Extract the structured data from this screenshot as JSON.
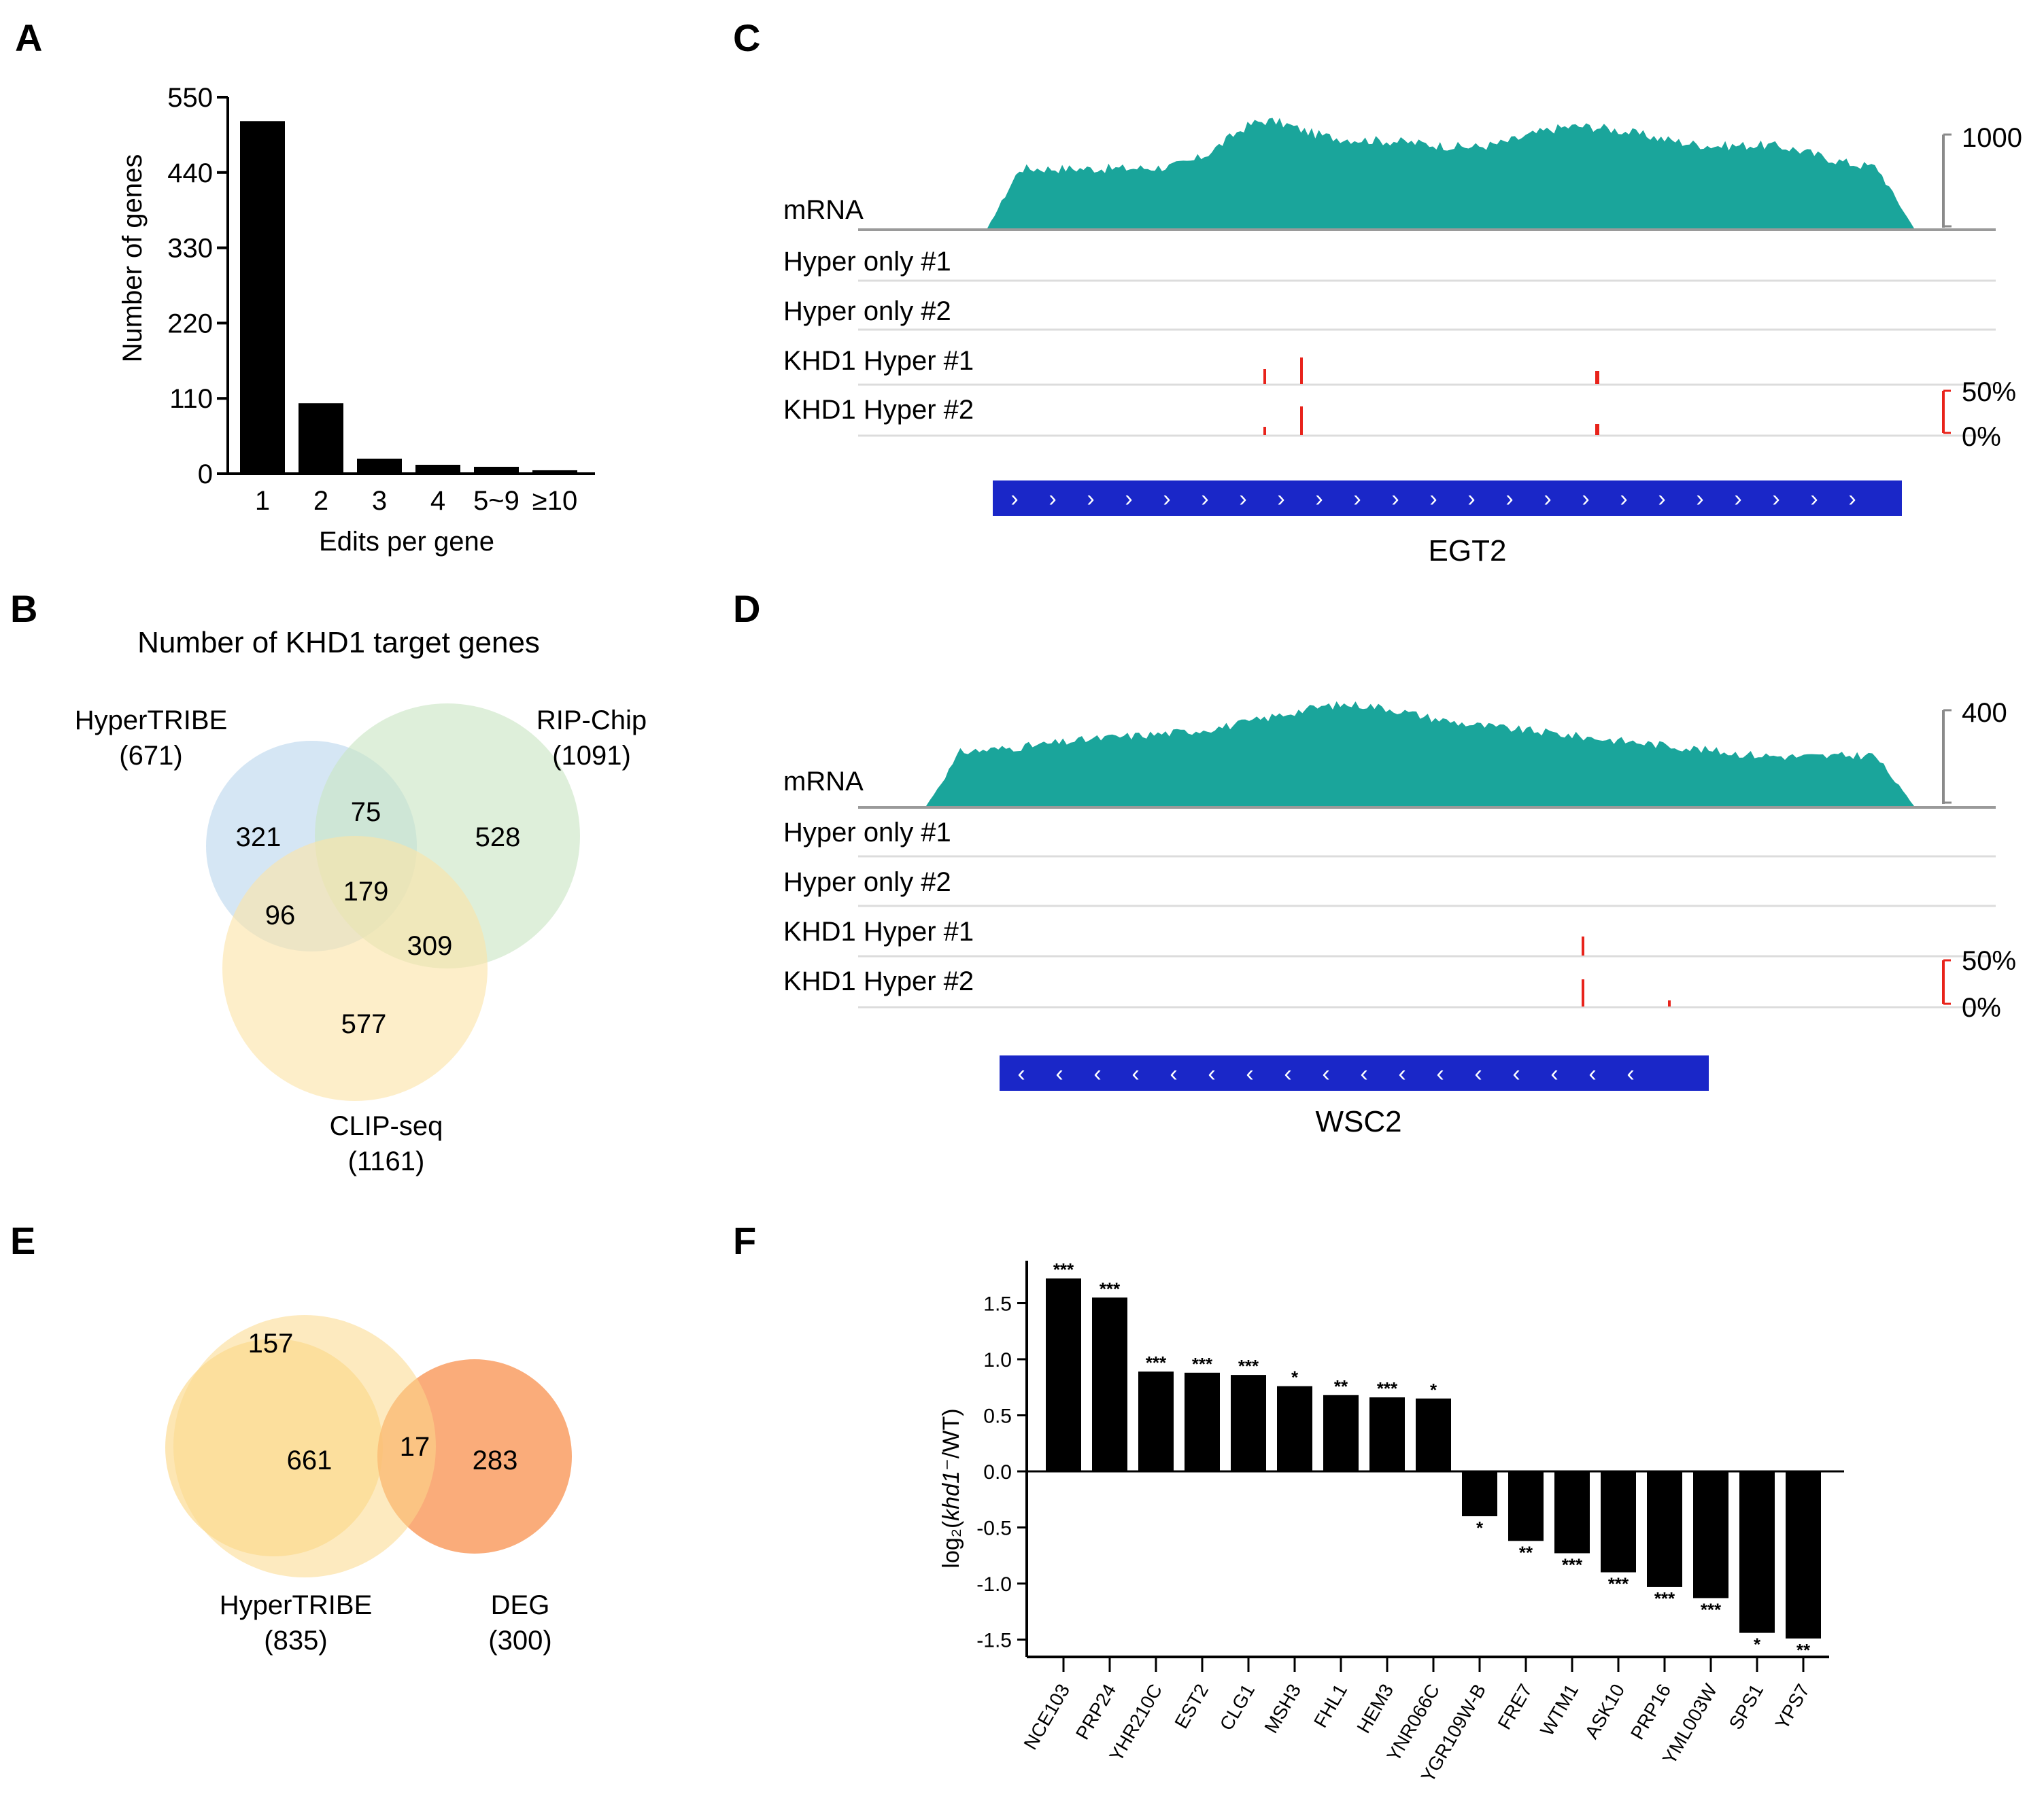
{
  "panels": {
    "A": {
      "letter": "A"
    },
    "B": {
      "letter": "B",
      "title": "Number of KHD1 target genes"
    },
    "C": {
      "letter": "C"
    },
    "D": {
      "letter": "D"
    },
    "E": {
      "letter": "E"
    },
    "F": {
      "letter": "F"
    }
  },
  "chart_data": [
    {
      "id": "A",
      "type": "bar",
      "categories": [
        "1",
        "2",
        "3",
        "4",
        "5~9",
        "≥10"
      ],
      "values": [
        515,
        103,
        22,
        13,
        10,
        5
      ],
      "ylabel": "Number of genes",
      "xlabel": "Edits per gene",
      "ylim": [
        0,
        550
      ],
      "yticks": [
        "0",
        "110",
        "220",
        "330",
        "440",
        "550"
      ],
      "colors": {
        "bar": "#000000"
      }
    },
    {
      "id": "F",
      "type": "bar",
      "ylabel_prefix": "log₂(",
      "ylabel_gene": "khd1",
      "ylabel_suffix": "⁻/WT)",
      "ylim": [
        -1.6,
        1.8
      ],
      "yticks": [
        {
          "v": 1.5,
          "label": "1.5"
        },
        {
          "v": 1.0,
          "label": "1.0"
        },
        {
          "v": 0.5,
          "label": "0.5"
        },
        {
          "v": 0.0,
          "label": "0.0"
        },
        {
          "v": -0.5,
          "label": "-0.5"
        },
        {
          "v": -1.0,
          "label": "-1.0"
        },
        {
          "v": -1.5,
          "label": "-1.5"
        }
      ],
      "categories": [
        "NCE103",
        "PRP24",
        "YHR210C",
        "EST2",
        "CLG1",
        "MSH3",
        "FHL1",
        "HEM3",
        "YNR066C",
        "YGR109W-B",
        "FRE7",
        "WTM1",
        "ASK10",
        "PRP16",
        "YML003W",
        "SPS1",
        "YPS7"
      ],
      "values": [
        1.72,
        1.55,
        0.89,
        0.88,
        0.86,
        0.76,
        0.68,
        0.66,
        0.65,
        -0.4,
        -0.62,
        -0.73,
        -0.9,
        -1.03,
        -1.13,
        -1.44,
        -1.49
      ],
      "significance": [
        "***",
        "***",
        "***",
        "***",
        "***",
        "*",
        "**",
        "***",
        "*",
        "*",
        "**",
        "***",
        "***",
        "***",
        "***",
        "*",
        "**"
      ]
    }
  ],
  "venn_b": {
    "sets": [
      {
        "name": "HyperTRIBE",
        "count": "(671)",
        "color": "#bcd7ee"
      },
      {
        "name": "RIP-Chip",
        "count": "(1091)",
        "color": "#c9e5c3"
      },
      {
        "name": "CLIP-seq",
        "count": "(1161)",
        "color": "#fbe3a8"
      }
    ],
    "regions": [
      "321",
      "75",
      "528",
      "96",
      "179",
      "309",
      "577"
    ]
  },
  "venn_e": {
    "sets": [
      {
        "name": "HyperTRIBE",
        "count": "(835)",
        "color": "#fcd98a"
      },
      {
        "name": "DEG",
        "count": "(300)",
        "color": "#f99a5d"
      }
    ],
    "regions": [
      "157",
      "661",
      "17",
      "283"
    ]
  },
  "track_c": {
    "scale_top": "1000",
    "pct_top": "50%",
    "pct_bottom": "0%",
    "tracks": [
      "mRNA",
      "Hyper only #1",
      "Hyper only #2",
      "KHD1 Hyper #1",
      "KHD1 Hyper #2"
    ],
    "gene": "EGT2",
    "strand_glyph": "›",
    "colors": {
      "coverage": "#1aa59b",
      "gene": "#1a27c8",
      "edit": "#e8231b"
    }
  },
  "track_d": {
    "scale_top": "400",
    "pct_top": "50%",
    "pct_bottom": "0%",
    "tracks": [
      "mRNA",
      "Hyper only #1",
      "Hyper only #2",
      "KHD1 Hyper #1",
      "KHD1 Hyper #2"
    ],
    "gene": "WSC2",
    "strand_glyph": "‹",
    "colors": {
      "coverage": "#1aa59b",
      "gene": "#1a27c8",
      "edit": "#e8231b"
    }
  }
}
